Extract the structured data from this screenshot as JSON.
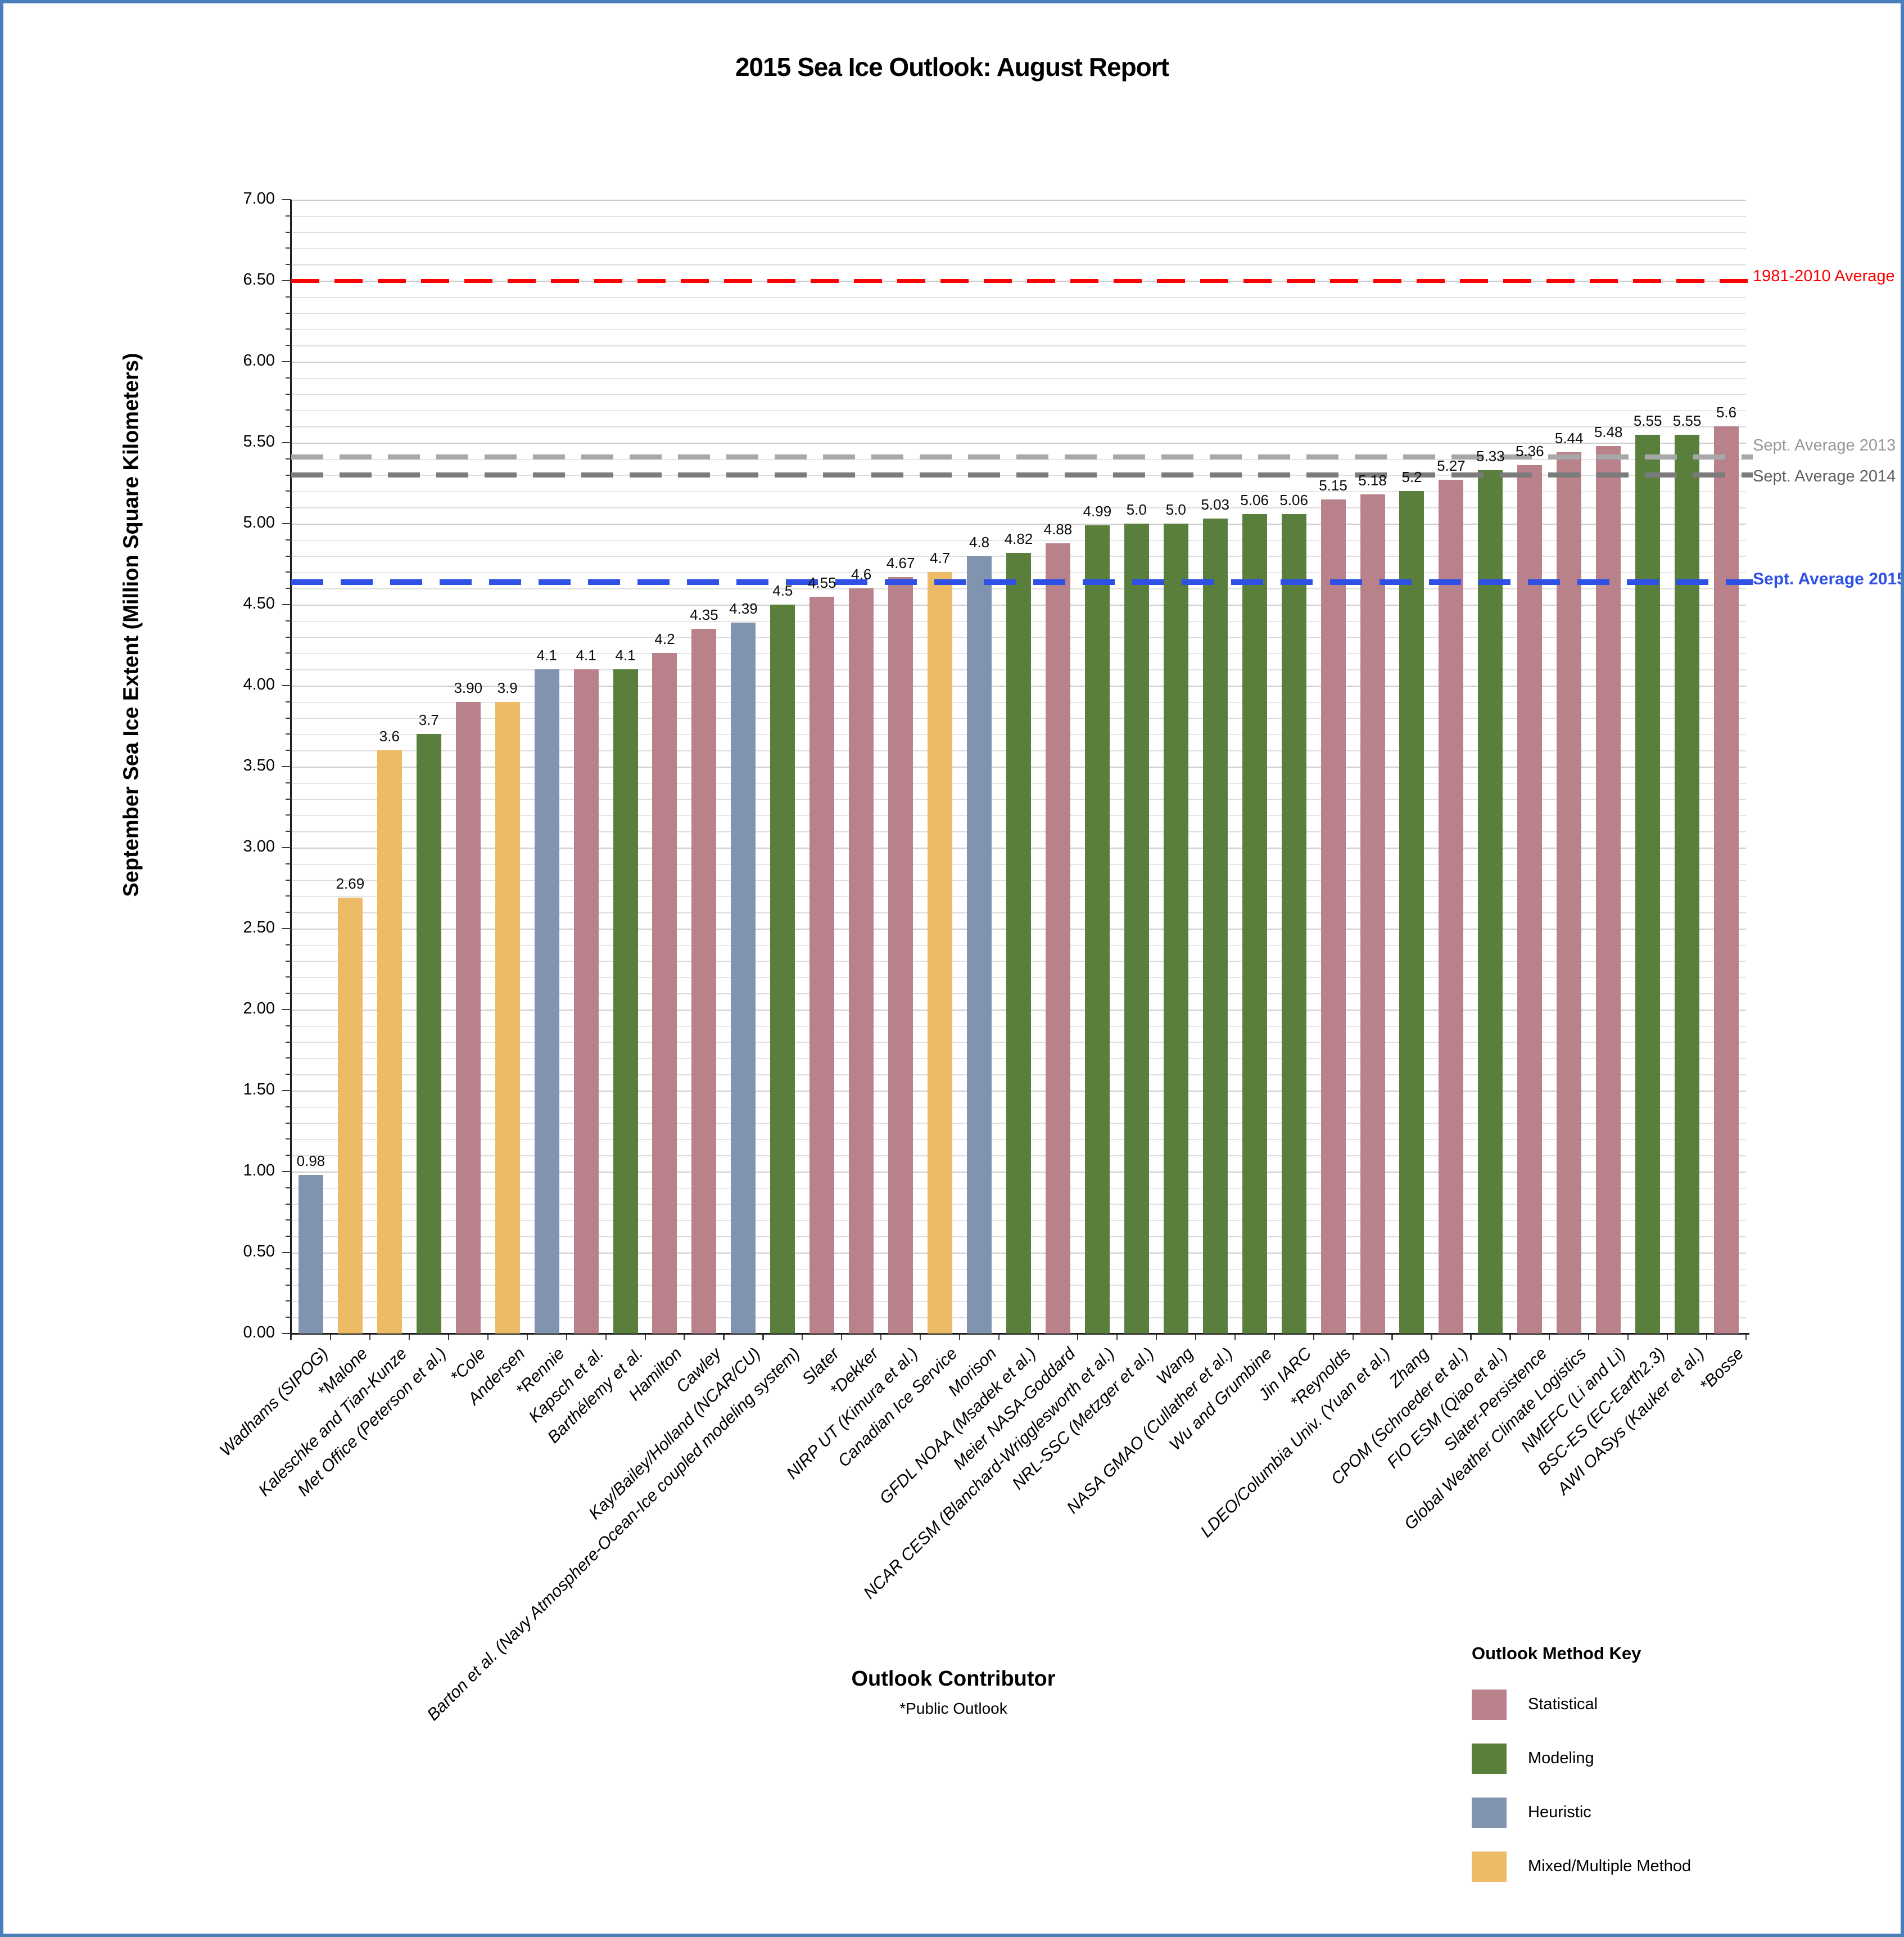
{
  "frame_border_color": "#4A7EBB",
  "chart_data": {
    "type": "bar",
    "title": "2015 Sea Ice Outlook: August Report",
    "xlabel": "Outlook Contributor",
    "xlabel_note": "*Public Outlook",
    "ylabel": "September Sea Ice Extent (Million Square Kilometers)",
    "ylim": [
      0,
      7
    ],
    "ytick_step": 0.5,
    "ytick_format": "0.00",
    "minor_grid_step": 0.1,
    "grid": true,
    "categories": [
      "Wadhams (SIPOG)",
      "*Malone",
      "Kaleschke and Tian-Kunze",
      "Met Office (Peterson et al.)",
      "*Cole",
      "Andersen",
      "*Rennie",
      "Kapsch et al.",
      "Barthélemy et al.",
      "Hamilton",
      "Cawley",
      "Kay/Bailey/Holland (NCAR/CU)",
      "Barton et al. (Navy Atmosphere-Ocean-Ice coupled modeling system)",
      "Slater",
      "*Dekker",
      "NIRP UT (Kimura et al.)",
      "Canadian Ice Service",
      "Morison",
      "GFDL NOAA (Msadek et al.)",
      "Meier NASA-Goddard",
      "NCAR CESM (Blanchard-Wrigglesworth et al.)",
      "NRL-SSC (Metzger et al.)",
      "Wang",
      "NASA GMAO (Cullather et al.)",
      "Wu and Grumbine",
      "Jin IARC",
      "*Reynolds",
      "LDEO/Columbia Univ. (Yuan et al.)",
      "Zhang",
      "CPOM (Schroeder et al.)",
      "FIO ESM (Qiao et al.)",
      "Slater-Persistence",
      "Global Weather Climate Logistics",
      "NMEFC (Li and Li)",
      "BSC-ES (EC-Earth2.3)",
      "AWI OASys (Kauker et al.)",
      "*Bosse"
    ],
    "values": [
      0.98,
      2.69,
      3.6,
      3.7,
      3.9,
      3.9,
      4.1,
      4.1,
      4.1,
      4.2,
      4.35,
      4.39,
      4.5,
      4.55,
      4.6,
      4.67,
      4.7,
      4.8,
      4.82,
      4.88,
      4.99,
      5.0,
      5.0,
      5.03,
      5.06,
      5.06,
      5.15,
      5.18,
      5.2,
      5.27,
      5.33,
      5.36,
      5.44,
      5.48,
      5.55,
      5.55,
      5.6
    ],
    "value_labels": [
      "0.98",
      "2.69",
      "3.6",
      "3.7",
      "3.90",
      "3.9",
      "4.1",
      "4.1",
      "4.1",
      "4.2",
      "4.35",
      "4.39",
      "4.5",
      "4.55",
      "4.6",
      "4.67",
      "4.7",
      "4.8",
      "4.82",
      "4.88",
      "4.99",
      "5.0",
      "5.0",
      "5.03",
      "5.06",
      "5.06",
      "5.15",
      "5.18",
      "5.2",
      "5.27",
      "5.33",
      "5.36",
      "5.44",
      "5.48",
      "5.55",
      "5.55",
      "5.6"
    ],
    "methods": [
      "heuristic",
      "mixed",
      "mixed",
      "modeling",
      "statistical",
      "mixed",
      "heuristic",
      "statistical",
      "modeling",
      "statistical",
      "statistical",
      "heuristic",
      "modeling",
      "statistical",
      "statistical",
      "statistical",
      "mixed",
      "heuristic",
      "modeling",
      "statistical",
      "modeling",
      "modeling",
      "modeling",
      "modeling",
      "modeling",
      "modeling",
      "statistical",
      "statistical",
      "modeling",
      "statistical",
      "modeling",
      "statistical",
      "statistical",
      "statistical",
      "modeling",
      "modeling",
      "statistical"
    ],
    "method_colors": {
      "statistical": "#B9828A",
      "modeling": "#5A7F3C",
      "heuristic": "#8094AF",
      "mixed": "#EDBA66"
    },
    "reference_lines": [
      {
        "id": "avg-1981-2010",
        "label": "1981-2010 Average",
        "value": 6.5,
        "line_color": "#FF0000",
        "label_color": "#FF0000",
        "bold": false
      },
      {
        "id": "sept-avg-2013",
        "label": "Sept. Average 2013",
        "value": 5.41,
        "line_color": "#A8A8A8",
        "label_color": "#979797",
        "bold": false
      },
      {
        "id": "sept-avg-2014",
        "label": "Sept. Average 2014",
        "value": 5.3,
        "line_color": "#7B7B7B",
        "label_color": "#5F5F5F",
        "bold": false
      },
      {
        "id": "sept-avg-2015",
        "label": "Sept. Average 2015",
        "value": 4.64,
        "line_color": "#2E50E4",
        "label_color": "#2E50E4",
        "bold": true
      }
    ],
    "legend": {
      "title": "Outlook Method Key",
      "position": "bottom-right",
      "items": [
        {
          "label": "Statistical",
          "method": "statistical",
          "color": "#B9828A"
        },
        {
          "label": "Modeling",
          "method": "modeling",
          "color": "#5A7F3C"
        },
        {
          "label": "Heuristic",
          "method": "heuristic",
          "color": "#8094AF"
        },
        {
          "label": "Mixed/Multiple Method",
          "method": "mixed",
          "color": "#EDBA66"
        }
      ]
    }
  }
}
